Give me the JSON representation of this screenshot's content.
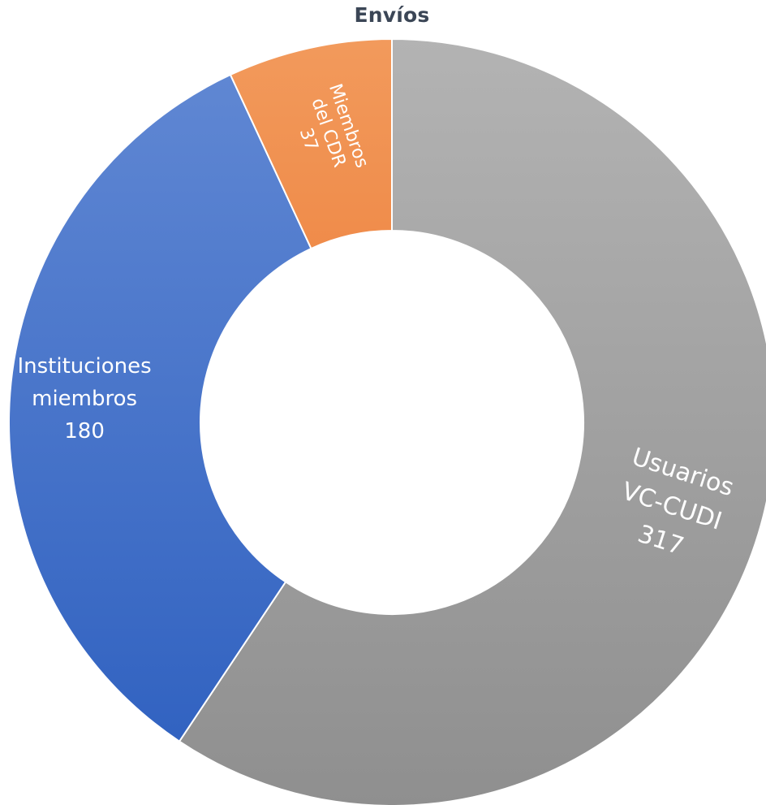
{
  "chart_data": {
    "type": "pie",
    "variant": "donut",
    "title": "Envíos",
    "slices": [
      {
        "label": "Usuarios VC-CUDI",
        "label_lines": [
          "Usuarios",
          "VC-CUDI",
          "317"
        ],
        "value": 317,
        "color_top": "#b3b3b3",
        "color_bottom": "#8f8f8f"
      },
      {
        "label": "Instituciones miembros",
        "label_lines": [
          "Instituciones",
          "miembros",
          "180"
        ],
        "value": 180,
        "color_top": "#6289d4",
        "color_bottom": "#2d5fbf"
      },
      {
        "label": "Miembros del CDR",
        "label_lines": [
          "Miembros",
          "del CDR",
          "37"
        ],
        "value": 37,
        "color_top": "#f29a5c",
        "color_bottom": "#e8651a"
      }
    ],
    "legend": "none",
    "start_angle_deg": 0,
    "direction": "clockwise"
  }
}
